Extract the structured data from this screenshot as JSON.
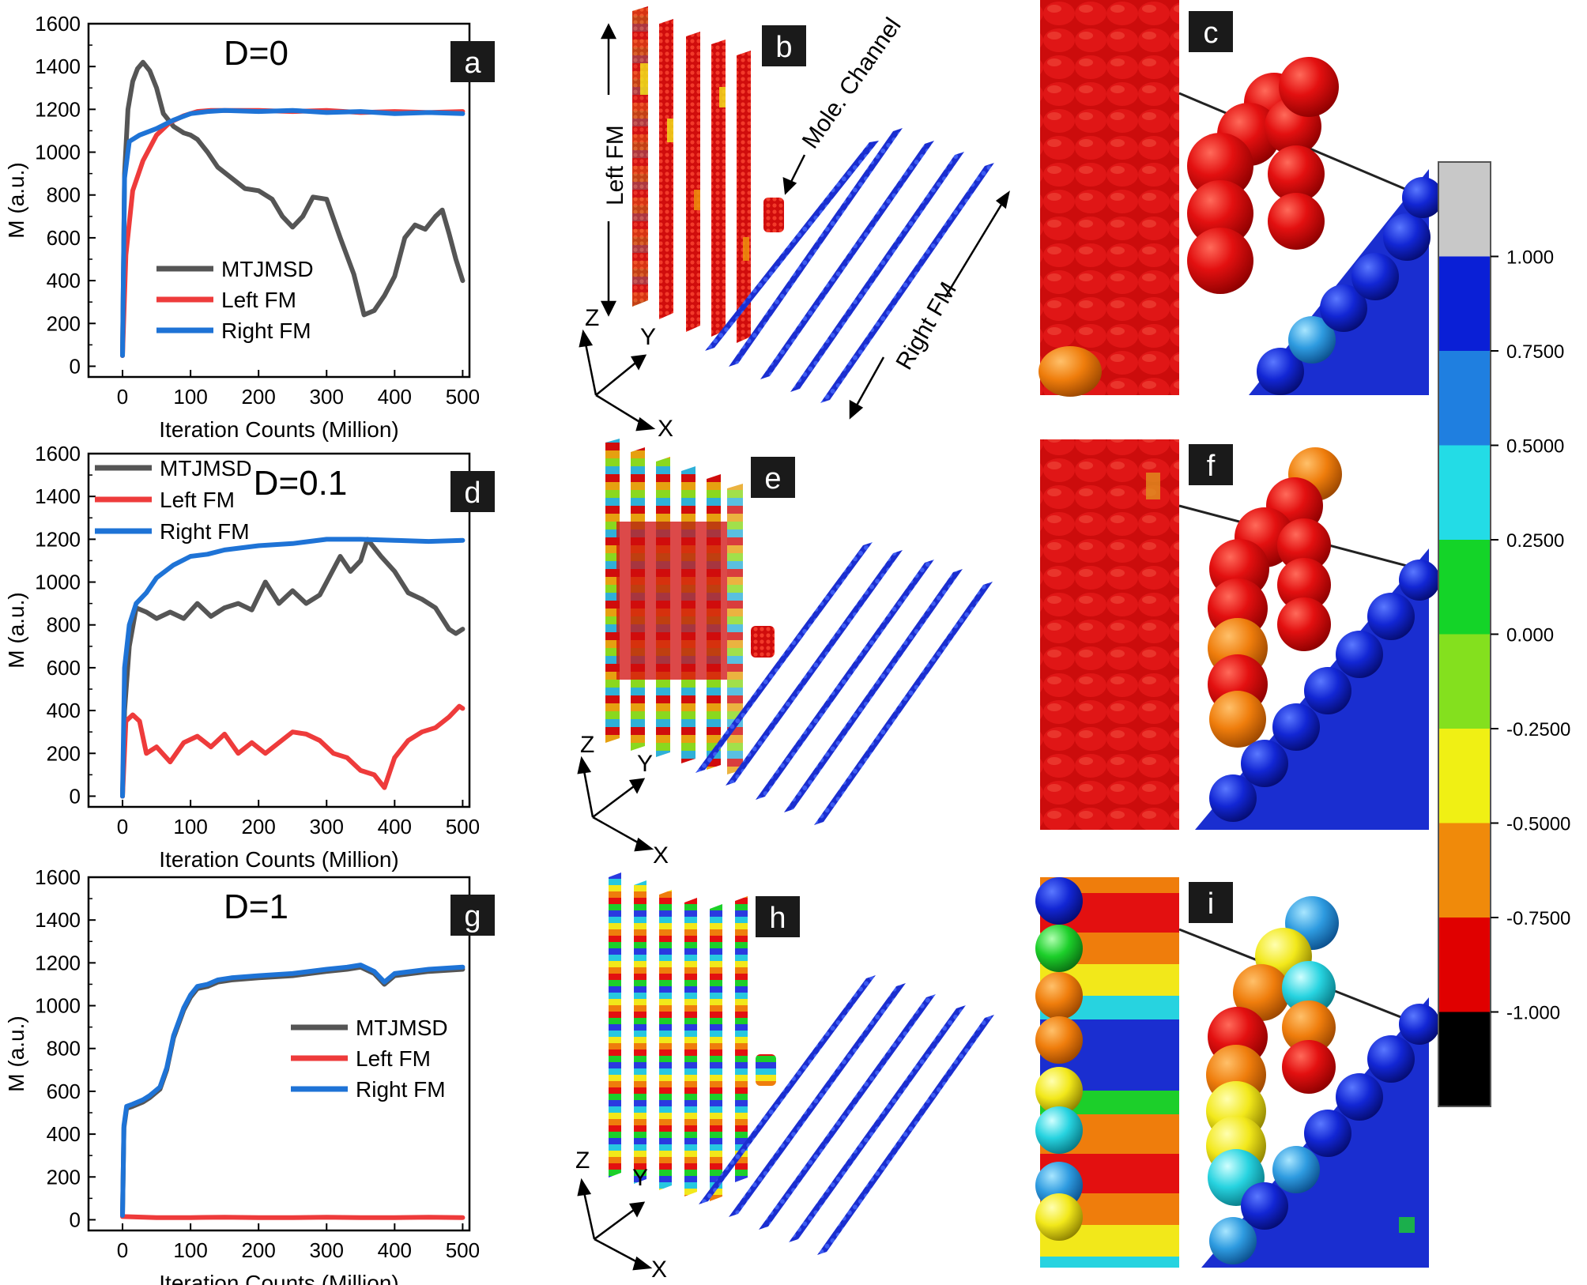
{
  "chart_data": [
    {
      "type": "line",
      "panel_label": "a",
      "annotation": "D=0",
      "xlabel": "Iteration Counts (Million)",
      "ylabel": "M (a.u.)",
      "xlim": [
        -50,
        510
      ],
      "ylim": [
        -50,
        1600
      ],
      "xticks": [
        0,
        100,
        200,
        300,
        400,
        500
      ],
      "yticks": [
        0,
        200,
        400,
        600,
        800,
        1000,
        1200,
        1400,
        1600
      ],
      "legend": "bottom-left",
      "series": [
        {
          "name": "MTJMSD",
          "color": "#555555",
          "x": [
            0,
            3,
            8,
            15,
            22,
            30,
            40,
            50,
            60,
            75,
            90,
            100,
            110,
            125,
            140,
            160,
            180,
            200,
            220,
            235,
            250,
            265,
            280,
            300,
            320,
            340,
            355,
            370,
            385,
            400,
            415,
            430,
            445,
            460,
            470,
            480,
            490,
            500
          ],
          "y": [
            50,
            900,
            1200,
            1330,
            1390,
            1420,
            1380,
            1300,
            1180,
            1120,
            1090,
            1080,
            1060,
            1000,
            930,
            880,
            830,
            820,
            780,
            700,
            650,
            700,
            790,
            780,
            600,
            430,
            240,
            260,
            330,
            420,
            600,
            660,
            640,
            700,
            730,
            620,
            500,
            400
          ]
        },
        {
          "name": "Left FM",
          "color": "#ee3b3b",
          "x": [
            0,
            5,
            15,
            30,
            50,
            70,
            90,
            110,
            130,
            160,
            200,
            250,
            300,
            350,
            400,
            450,
            500
          ],
          "y": [
            50,
            520,
            820,
            960,
            1080,
            1140,
            1170,
            1190,
            1195,
            1195,
            1195,
            1190,
            1195,
            1185,
            1190,
            1185,
            1190
          ]
        },
        {
          "name": "Right FM",
          "color": "#1e73d6",
          "x": [
            0,
            3,
            10,
            25,
            50,
            75,
            100,
            125,
            150,
            200,
            250,
            300,
            350,
            400,
            450,
            500
          ],
          "y": [
            50,
            880,
            1050,
            1080,
            1110,
            1150,
            1180,
            1190,
            1195,
            1190,
            1195,
            1185,
            1190,
            1180,
            1185,
            1180
          ]
        }
      ]
    },
    {
      "type": "line",
      "panel_label": "d",
      "annotation": "D=0.1",
      "xlabel": "Iteration Counts (Million)",
      "ylabel": "M (a.u.)",
      "xlim": [
        -50,
        510
      ],
      "ylim": [
        -50,
        1600
      ],
      "xticks": [
        0,
        100,
        200,
        300,
        400,
        500
      ],
      "yticks": [
        0,
        200,
        400,
        600,
        800,
        1000,
        1200,
        1400,
        1600
      ],
      "legend": "top-left",
      "series": [
        {
          "name": "MTJMSD",
          "color": "#555555",
          "x": [
            0,
            3,
            10,
            20,
            35,
            50,
            70,
            90,
            110,
            130,
            150,
            170,
            190,
            210,
            230,
            250,
            270,
            290,
            300,
            320,
            335,
            350,
            360,
            380,
            400,
            420,
            440,
            460,
            480,
            490,
            500
          ],
          "y": [
            0,
            400,
            700,
            880,
            860,
            830,
            860,
            830,
            900,
            840,
            880,
            900,
            870,
            1000,
            900,
            960,
            900,
            940,
            1000,
            1120,
            1050,
            1100,
            1200,
            1120,
            1050,
            950,
            920,
            880,
            780,
            760,
            780
          ]
        },
        {
          "name": "Left FM",
          "color": "#ee3b3b",
          "x": [
            0,
            5,
            15,
            25,
            35,
            50,
            70,
            90,
            110,
            130,
            150,
            170,
            190,
            210,
            230,
            250,
            270,
            290,
            310,
            330,
            350,
            370,
            385,
            400,
            420,
            440,
            460,
            480,
            495,
            500
          ],
          "y": [
            0,
            350,
            380,
            350,
            200,
            230,
            160,
            250,
            280,
            230,
            290,
            200,
            250,
            200,
            250,
            300,
            290,
            260,
            200,
            180,
            120,
            100,
            40,
            180,
            260,
            300,
            320,
            370,
            420,
            410
          ]
        },
        {
          "name": "Right FM",
          "color": "#1e73d6",
          "x": [
            0,
            3,
            10,
            20,
            35,
            50,
            75,
            100,
            125,
            150,
            200,
            250,
            300,
            350,
            400,
            450,
            500
          ],
          "y": [
            0,
            600,
            800,
            900,
            950,
            1020,
            1080,
            1120,
            1130,
            1150,
            1170,
            1180,
            1200,
            1200,
            1195,
            1190,
            1195
          ]
        }
      ]
    },
    {
      "type": "line",
      "panel_label": "g",
      "annotation": "D=1",
      "xlabel": "Iteration Counts (Million)",
      "ylabel": "M (a.u.)",
      "xlim": [
        -50,
        510
      ],
      "ylim": [
        -50,
        1600
      ],
      "xticks": [
        0,
        100,
        200,
        300,
        400,
        500
      ],
      "yticks": [
        0,
        200,
        400,
        600,
        800,
        1000,
        1200,
        1400,
        1600
      ],
      "legend": "bottom-right",
      "series": [
        {
          "name": "MTJMSD",
          "color": "#555555",
          "x": [
            0,
            2,
            6,
            15,
            30,
            40,
            55,
            65,
            75,
            90,
            100,
            110,
            125,
            140,
            160,
            200,
            250,
            300,
            330,
            350,
            370,
            385,
            400,
            450,
            500
          ],
          "y": [
            20,
            430,
            520,
            530,
            550,
            570,
            610,
            700,
            850,
            980,
            1040,
            1080,
            1090,
            1110,
            1120,
            1130,
            1140,
            1160,
            1170,
            1180,
            1150,
            1100,
            1140,
            1160,
            1170
          ]
        },
        {
          "name": "Left FM",
          "color": "#ee3b3b",
          "x": [
            0,
            50,
            100,
            150,
            200,
            250,
            300,
            350,
            400,
            450,
            500
          ],
          "y": [
            15,
            10,
            10,
            12,
            10,
            10,
            12,
            10,
            10,
            12,
            10
          ]
        },
        {
          "name": "Right FM",
          "color": "#1e73d6",
          "x": [
            0,
            2,
            6,
            15,
            30,
            40,
            55,
            65,
            75,
            90,
            100,
            110,
            125,
            140,
            160,
            200,
            250,
            300,
            330,
            350,
            370,
            385,
            400,
            450,
            500
          ],
          "y": [
            20,
            440,
            530,
            540,
            560,
            580,
            620,
            710,
            860,
            990,
            1050,
            1090,
            1100,
            1120,
            1130,
            1140,
            1150,
            1170,
            1180,
            1190,
            1160,
            1110,
            1150,
            1170,
            1180
          ]
        }
      ]
    }
  ],
  "figure": {
    "panel_labels": {
      "b": "b",
      "c": "c",
      "e": "e",
      "f": "f",
      "h": "h",
      "i": "i"
    },
    "annotations": {
      "left_fm": "Left FM",
      "right_fm": "Right FM",
      "mole_channel": "Mole. Channel",
      "axis_x": "X",
      "axis_y": "Y",
      "axis_z": "Z"
    },
    "colorbar": {
      "labels": [
        "1.000",
        "0.7500",
        "0.5000",
        "0.2500",
        "0.000",
        "-0.2500",
        "-0.5000",
        "-0.7500",
        "-1.000"
      ],
      "colors": [
        "#c8c8c8",
        "#0a1fd6",
        "#1f7fe0",
        "#23dce6",
        "#14d428",
        "#84e01e",
        "#f0f014",
        "#f08a0a",
        "#e00000",
        "#000000"
      ]
    },
    "colors": {
      "red_atom": "#d60f0f",
      "blue_atom": "#1830d8",
      "light_blue_atom": "#34a8e6"
    }
  }
}
